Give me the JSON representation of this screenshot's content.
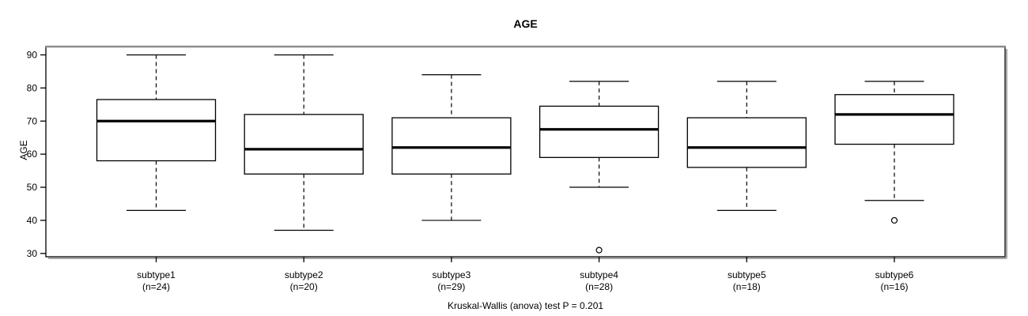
{
  "title": "AGE",
  "caption": "Kruskal-Wallis (anova) test P = 0.201",
  "colors": {
    "background": "#ffffff",
    "box_fill": "#ffffff",
    "box_stroke": "#000000",
    "median": "#000000",
    "frame": "#000000",
    "frame_top": "#8c8c8c",
    "frame_shadow": "#a8a8a8",
    "text": "#000000"
  },
  "chart_data": {
    "type": "boxplot",
    "title": "AGE",
    "xlabel": "",
    "ylabel": "AGE",
    "ylim": [
      29,
      92.5
    ],
    "yticks": [
      30,
      40,
      50,
      60,
      70,
      80,
      90
    ],
    "grid": false,
    "legend": "none",
    "caption": "Kruskal-Wallis (anova) test P = 0.201",
    "categories": [
      "subtype1",
      "subtype2",
      "subtype3",
      "subtype4",
      "subtype5",
      "subtype6"
    ],
    "n_labels": [
      "(n=24)",
      "(n=20)",
      "(n=29)",
      "(n=28)",
      "(n=18)",
      "(n=16)"
    ],
    "groups": [
      {
        "name": "subtype1",
        "n": 24,
        "whisker_low": 43,
        "q1": 58,
        "median": 70,
        "q3": 76.5,
        "whisker_high": 90,
        "outliers": []
      },
      {
        "name": "subtype2",
        "n": 20,
        "whisker_low": 37,
        "q1": 54,
        "median": 61.5,
        "q3": 72,
        "whisker_high": 90,
        "outliers": []
      },
      {
        "name": "subtype3",
        "n": 29,
        "whisker_low": 40,
        "q1": 54,
        "median": 62,
        "q3": 71,
        "whisker_high": 84,
        "outliers": []
      },
      {
        "name": "subtype4",
        "n": 28,
        "whisker_low": 50,
        "q1": 59,
        "median": 67.5,
        "q3": 74.5,
        "whisker_high": 82,
        "outliers": [
          31
        ]
      },
      {
        "name": "subtype5",
        "n": 18,
        "whisker_low": 43,
        "q1": 56,
        "median": 62,
        "q3": 71,
        "whisker_high": 82,
        "outliers": []
      },
      {
        "name": "subtype6",
        "n": 16,
        "whisker_low": 46,
        "q1": 63,
        "median": 72,
        "q3": 78,
        "whisker_high": 82,
        "outliers": [
          40
        ]
      }
    ]
  }
}
